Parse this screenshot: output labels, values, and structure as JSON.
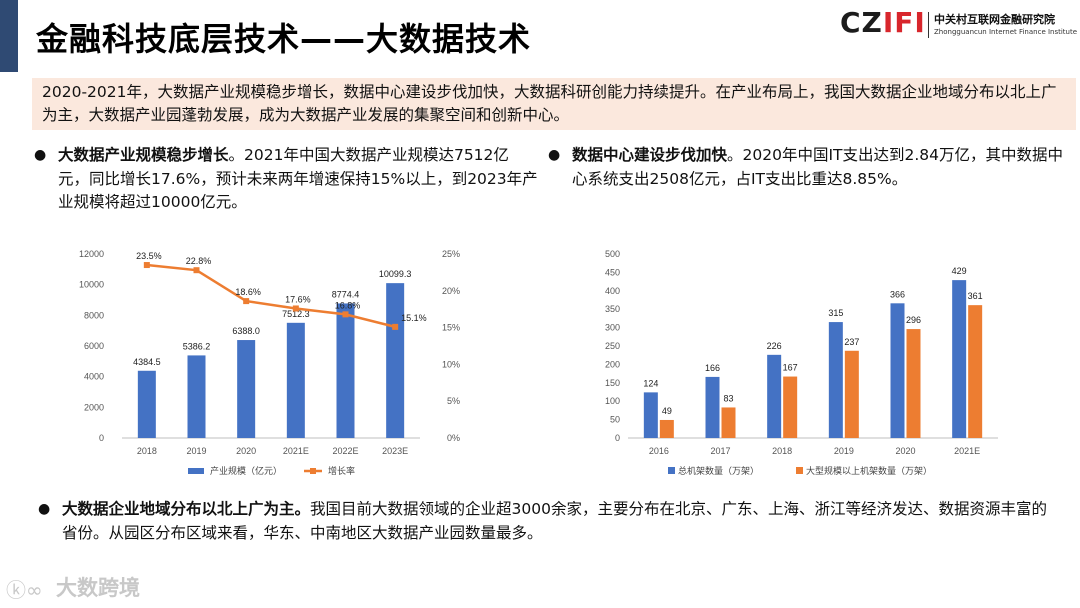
{
  "header": {
    "title": "金融科技底层技术——大数据技术",
    "logo_mark_left": "CZ",
    "logo_mark_right": "IFI",
    "logo_cn": "中关村互联网金融研究院",
    "logo_en": "Zhongguancun Internet Finance Institute"
  },
  "summary": "2020-2021年，大数据产业规模稳步增长，数据中心建设步伐加快，大数据科研创能力持续提升。在产业布局上，我国大数据企业地域分布以北上广为主，大数据产业园蓬勃发展，成为大数据产业发展的集聚空间和创新中心。",
  "bullets": [
    {
      "bold": "大数据产业规模稳步增长",
      "text": "。2021年中国大数据产业规模达7512亿元，同比增长17.6%，预计未来两年增速保持15%以上，到2023年产业规模将超过10000亿元。"
    },
    {
      "bold": "数据中心建设步伐加快",
      "text": "。2020年中国IT支出达到2.84万亿，其中数据中心系统支出2508亿元，占IT支出比重达8.85%。"
    },
    {
      "bold": "大数据企业地域分布以北上广为主。",
      "text": "我国目前大数据领域的企业超3000余家，主要分布在北京、广东、上海、浙江等经济发达、数据资源丰富的省份。从园区分布区域来看，华东、中南地区大数据产业园数量最多。"
    }
  ],
  "chart_data": [
    {
      "type": "bar",
      "categories": [
        "2018",
        "2019",
        "2020",
        "2021E",
        "2022E",
        "2023E"
      ],
      "series": [
        {
          "name": "产业规模（亿元）",
          "type": "bar",
          "axis": "left",
          "values": [
            4384.5,
            5386.2,
            6388.0,
            7512.3,
            8774.4,
            10099.3
          ],
          "labels": [
            "4384.5",
            "5386.2",
            "6388.0",
            "7512.3",
            "8774.4",
            "10099.3"
          ]
        },
        {
          "name": "增长率",
          "type": "line",
          "axis": "right",
          "values": [
            23.5,
            22.8,
            18.6,
            17.6,
            16.8,
            15.1
          ],
          "labels": [
            "23.5%",
            "22.8%",
            "18.6%",
            "17.6%",
            "16.8%",
            "15.1%"
          ]
        }
      ],
      "ylim": [
        0,
        12000
      ],
      "yticks": [
        "0",
        "2000",
        "4000",
        "6000",
        "8000",
        "10000",
        "12000"
      ],
      "y2lim": [
        0,
        25
      ],
      "y2ticks": [
        "0%",
        "5%",
        "10%",
        "15%",
        "20%",
        "25%"
      ],
      "legend": "bottom",
      "colors": {
        "bar": "#4472c4",
        "line": "#ed7d31"
      }
    },
    {
      "type": "bar",
      "categories": [
        "2016",
        "2017",
        "2018",
        "2019",
        "2020",
        "2021E"
      ],
      "series": [
        {
          "name": "总机架数量（万架）",
          "values": [
            124,
            166,
            226,
            315,
            366,
            429
          ]
        },
        {
          "name": "大型规模以上机架数量（万架）",
          "values": [
            49,
            83,
            167,
            237,
            296,
            361
          ]
        }
      ],
      "ylim": [
        0,
        500
      ],
      "yticks": [
        "0",
        "50",
        "100",
        "150",
        "200",
        "250",
        "300",
        "350",
        "400",
        "450",
        "500"
      ],
      "legend": "bottom",
      "colors": {
        "s1": "#4472c4",
        "s2": "#ed7d31"
      }
    }
  ],
  "watermark": {
    "icon": "ko-logo-icon",
    "text": "大数跨境"
  }
}
